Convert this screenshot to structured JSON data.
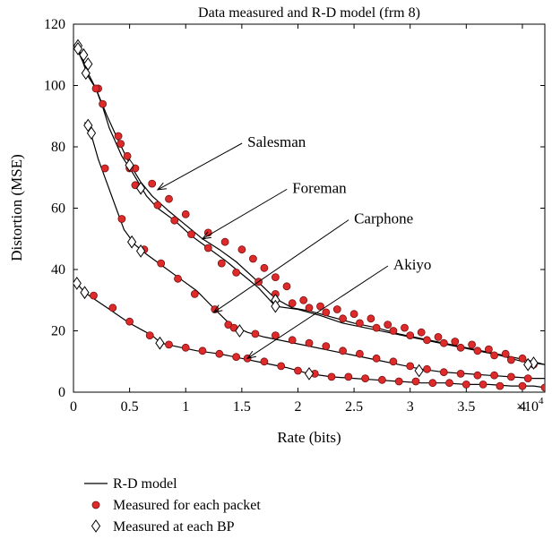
{
  "chart_data": {
    "type": "line",
    "title": "Data measured and R-D model (frm 8)",
    "xlabel": "Rate (bits)",
    "ylabel": "Distortion (MSE)",
    "xlim": [
      0,
      42000
    ],
    "ylim": [
      0,
      120
    ],
    "x_multiplier": {
      "base": "×10",
      "exponent": "4"
    },
    "x_ticks": [
      0,
      5000,
      10000,
      15000,
      20000,
      25000,
      30000,
      35000,
      40000
    ],
    "x_tick_labels": [
      "0",
      "0.5",
      "1",
      "1.5",
      "2",
      "2.5",
      "3",
      "3.5",
      "4"
    ],
    "y_ticks": [
      0,
      20,
      40,
      60,
      80,
      100,
      120
    ],
    "y_tick_labels": [
      "0",
      "20",
      "40",
      "60",
      "80",
      "100",
      "120"
    ],
    "grid": false,
    "legend_position": "bottom",
    "legend": [
      {
        "label": "R-D model",
        "marker": "line"
      },
      {
        "label": "Measured for each packet",
        "marker": "circle",
        "color": "#dd2a2a"
      },
      {
        "label": "Measured at each BP",
        "marker": "diamond"
      }
    ],
    "series": [
      {
        "name": "Salesman",
        "model": [
          [
            300,
            113
          ],
          [
            800,
            109
          ],
          [
            1300,
            104
          ],
          [
            2000,
            99
          ],
          [
            3000,
            90
          ],
          [
            4000,
            82
          ],
          [
            5000,
            74.5
          ],
          [
            6000,
            68.5
          ],
          [
            7000,
            64
          ],
          [
            8500,
            59
          ],
          [
            10000,
            54.5
          ],
          [
            11500,
            50
          ],
          [
            13000,
            46.5
          ],
          [
            14500,
            42.5
          ],
          [
            16000,
            37.5
          ],
          [
            17000,
            34
          ],
          [
            18000,
            30.5
          ],
          [
            19500,
            27.5
          ],
          [
            21000,
            26.5
          ],
          [
            23000,
            24.5
          ],
          [
            25000,
            22.5
          ],
          [
            27000,
            21
          ],
          [
            29000,
            19
          ],
          [
            31000,
            17.5
          ],
          [
            33000,
            16
          ],
          [
            35000,
            14.5
          ],
          [
            37000,
            13
          ],
          [
            39000,
            11.5
          ],
          [
            41000,
            10
          ],
          [
            42000,
            9
          ]
        ],
        "packets": [
          [
            2200,
            99
          ],
          [
            4000,
            83.5
          ],
          [
            4800,
            77
          ],
          [
            5500,
            73
          ],
          [
            7000,
            68
          ],
          [
            8500,
            63
          ],
          [
            10000,
            58
          ],
          [
            12000,
            52
          ],
          [
            13500,
            49
          ],
          [
            15000,
            46.5
          ],
          [
            16000,
            43.5
          ],
          [
            17000,
            40.5
          ],
          [
            18000,
            37.5
          ],
          [
            19000,
            34.5
          ],
          [
            20500,
            30
          ],
          [
            22000,
            28
          ],
          [
            23500,
            27
          ],
          [
            25000,
            25.5
          ],
          [
            26500,
            24
          ],
          [
            28000,
            22
          ],
          [
            29500,
            21
          ],
          [
            31000,
            19.5
          ],
          [
            32500,
            18
          ],
          [
            34000,
            16.5
          ],
          [
            35500,
            15.5
          ],
          [
            37000,
            14
          ],
          [
            38500,
            12.5
          ],
          [
            40000,
            11
          ]
        ],
        "bp": [
          [
            400,
            113
          ],
          [
            900,
            110
          ],
          [
            1300,
            107
          ],
          [
            5000,
            74
          ],
          [
            6000,
            66.5
          ],
          [
            18000,
            30
          ],
          [
            41000,
            9.5
          ]
        ]
      },
      {
        "name": "Foreman",
        "model": [
          [
            300,
            112
          ],
          [
            800,
            108
          ],
          [
            1300,
            103
          ],
          [
            2000,
            99
          ],
          [
            2600,
            93
          ],
          [
            3200,
            86
          ],
          [
            3700,
            82
          ],
          [
            4300,
            77
          ],
          [
            5200,
            72
          ],
          [
            6500,
            64
          ],
          [
            7500,
            60
          ],
          [
            9000,
            56
          ],
          [
            10500,
            51
          ],
          [
            12000,
            47
          ],
          [
            13500,
            43
          ],
          [
            15000,
            38.5
          ],
          [
            16500,
            34
          ],
          [
            18000,
            28
          ],
          [
            20000,
            27
          ],
          [
            22000,
            25
          ],
          [
            24000,
            22.5
          ],
          [
            26000,
            21
          ],
          [
            28000,
            19.5
          ],
          [
            30000,
            18
          ],
          [
            32000,
            16.5
          ],
          [
            34000,
            15
          ],
          [
            36000,
            13.5
          ],
          [
            38000,
            12
          ],
          [
            40000,
            10
          ],
          [
            42000,
            9
          ]
        ],
        "packets": [
          [
            2000,
            99
          ],
          [
            2600,
            94
          ],
          [
            4200,
            81
          ],
          [
            5000,
            73
          ],
          [
            5500,
            67.5
          ],
          [
            7500,
            61
          ],
          [
            9000,
            56
          ],
          [
            10500,
            51.5
          ],
          [
            12000,
            47
          ],
          [
            13200,
            42
          ],
          [
            14500,
            39
          ],
          [
            16500,
            36
          ],
          [
            18000,
            32
          ],
          [
            19500,
            29
          ],
          [
            21000,
            27.5
          ],
          [
            22500,
            26
          ],
          [
            24000,
            24
          ],
          [
            25500,
            22.5
          ],
          [
            27000,
            21
          ],
          [
            28500,
            20
          ],
          [
            30000,
            18.5
          ],
          [
            31500,
            17
          ],
          [
            33000,
            16
          ],
          [
            34500,
            14.5
          ],
          [
            36000,
            13.5
          ],
          [
            37500,
            12
          ],
          [
            39000,
            10.5
          ],
          [
            41000,
            9
          ]
        ],
        "bp": [
          [
            400,
            112
          ],
          [
            1100,
            104
          ],
          [
            18000,
            28
          ],
          [
            40500,
            9
          ]
        ]
      },
      {
        "name": "Carphone",
        "model": [
          [
            1000,
            88
          ],
          [
            1500,
            85
          ],
          [
            2200,
            76
          ],
          [
            3000,
            68
          ],
          [
            3800,
            60
          ],
          [
            4500,
            53
          ],
          [
            5500,
            48
          ],
          [
            6500,
            45
          ],
          [
            8000,
            41
          ],
          [
            9500,
            37
          ],
          [
            11000,
            33
          ],
          [
            12600,
            27
          ],
          [
            14000,
            22
          ],
          [
            15500,
            19.5
          ],
          [
            17000,
            18
          ],
          [
            19000,
            16.5
          ],
          [
            21000,
            15
          ],
          [
            23000,
            13.5
          ],
          [
            25000,
            12
          ],
          [
            27000,
            10.5
          ],
          [
            29000,
            9
          ],
          [
            31000,
            7.5
          ],
          [
            33000,
            6.5
          ],
          [
            35000,
            6
          ],
          [
            37000,
            5.5
          ],
          [
            39000,
            5
          ],
          [
            41000,
            4.5
          ],
          [
            42000,
            4.5
          ]
        ],
        "packets": [
          [
            2800,
            73
          ],
          [
            4300,
            56.5
          ],
          [
            6300,
            46.5
          ],
          [
            7800,
            42
          ],
          [
            9300,
            37
          ],
          [
            10800,
            32
          ],
          [
            12600,
            27
          ],
          [
            13800,
            22
          ],
          [
            14300,
            21
          ],
          [
            16200,
            19
          ],
          [
            18000,
            18.5
          ],
          [
            19500,
            17
          ],
          [
            21000,
            16
          ],
          [
            22500,
            15
          ],
          [
            24000,
            13.5
          ],
          [
            25500,
            12.5
          ],
          [
            27000,
            11
          ],
          [
            28500,
            10
          ],
          [
            30000,
            8.5
          ],
          [
            31500,
            7.5
          ],
          [
            33000,
            6.5
          ],
          [
            34500,
            6
          ],
          [
            36000,
            5.5
          ],
          [
            37500,
            5.5
          ],
          [
            39000,
            5
          ],
          [
            40500,
            4.5
          ]
        ],
        "bp": [
          [
            1300,
            87
          ],
          [
            1600,
            84.5
          ],
          [
            5200,
            49
          ],
          [
            6000,
            46
          ],
          [
            14800,
            20
          ],
          [
            30800,
            7
          ]
        ]
      },
      {
        "name": "Akiyo",
        "model": [
          [
            300,
            35.5
          ],
          [
            1000,
            32.5
          ],
          [
            2000,
            30
          ],
          [
            3000,
            27.5
          ],
          [
            4000,
            25
          ],
          [
            5000,
            22.5
          ],
          [
            6000,
            20.5
          ],
          [
            7000,
            18.5
          ],
          [
            7800,
            16
          ],
          [
            9000,
            15
          ],
          [
            11000,
            13.5
          ],
          [
            13000,
            12.5
          ],
          [
            15000,
            11
          ],
          [
            17000,
            9.5
          ],
          [
            19000,
            8
          ],
          [
            21000,
            6
          ],
          [
            23000,
            5
          ],
          [
            25000,
            4.5
          ],
          [
            27000,
            4
          ],
          [
            29000,
            3.5
          ],
          [
            31000,
            3
          ],
          [
            33000,
            3
          ],
          [
            35000,
            2.5
          ],
          [
            37000,
            2.5
          ],
          [
            39000,
            2
          ],
          [
            41000,
            2
          ],
          [
            42000,
            1.5
          ]
        ],
        "packets": [
          [
            1800,
            31.5
          ],
          [
            3500,
            27.5
          ],
          [
            5000,
            23
          ],
          [
            6800,
            18.5
          ],
          [
            8500,
            15.5
          ],
          [
            10000,
            14.5
          ],
          [
            11500,
            13.5
          ],
          [
            13000,
            12.5
          ],
          [
            14500,
            11.5
          ],
          [
            15500,
            11
          ],
          [
            17000,
            10
          ],
          [
            18500,
            8.5
          ],
          [
            20000,
            7
          ],
          [
            21500,
            6
          ],
          [
            23000,
            5
          ],
          [
            24500,
            5
          ],
          [
            26000,
            4.5
          ],
          [
            27500,
            4
          ],
          [
            29000,
            3.5
          ],
          [
            30500,
            3.5
          ],
          [
            32000,
            3
          ],
          [
            33500,
            3
          ],
          [
            35000,
            2.5
          ],
          [
            36500,
            2.5
          ],
          [
            38000,
            2
          ],
          [
            40000,
            2
          ],
          [
            42000,
            1.5
          ]
        ],
        "bp": [
          [
            300,
            35.5
          ],
          [
            1000,
            32.5
          ],
          [
            7700,
            16
          ],
          [
            21000,
            6
          ]
        ]
      }
    ],
    "annotations": [
      {
        "label": "Salesman",
        "text_at": [
          15500,
          80
        ],
        "arrow_to": [
          7500,
          66
        ]
      },
      {
        "label": "Foreman",
        "text_at": [
          19500,
          65
        ],
        "arrow_to": [
          11500,
          50
        ]
      },
      {
        "label": "Carphone",
        "text_at": [
          25000,
          55
        ],
        "arrow_to": [
          12500,
          26
        ]
      },
      {
        "label": "Akiyo",
        "text_at": [
          28500,
          40
        ],
        "arrow_to": [
          15500,
          11
        ]
      }
    ]
  }
}
